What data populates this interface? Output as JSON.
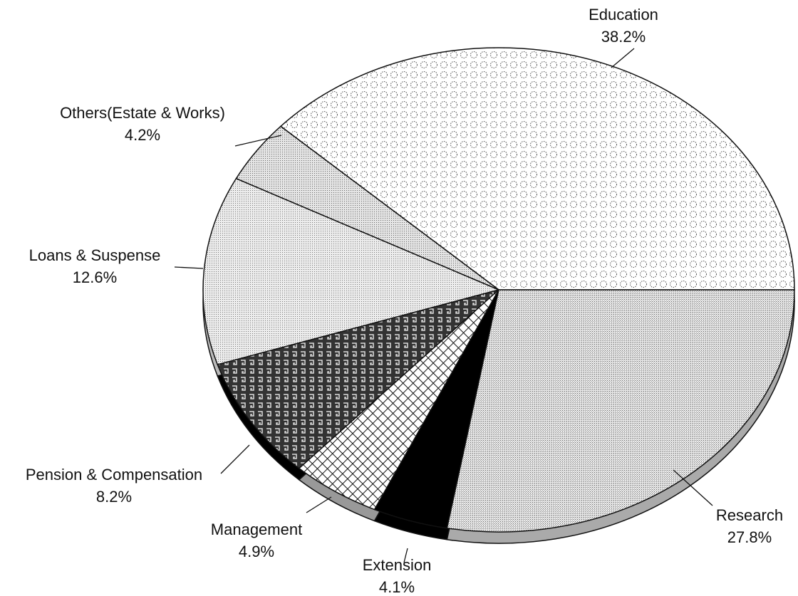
{
  "chart_data": {
    "type": "pie",
    "categories": [
      "Education",
      "Others(Estate & Works)",
      "Loans & Suspense",
      "Pension & Compensation",
      "Management",
      "Extension",
      "Research"
    ],
    "values": [
      38.2,
      4.2,
      12.6,
      8.2,
      4.9,
      4.1,
      27.8
    ],
    "value_labels": [
      "38.2%",
      "4.2%",
      "12.6%",
      "8.2%",
      "4.9%",
      "4.1%",
      "27.8%"
    ]
  }
}
